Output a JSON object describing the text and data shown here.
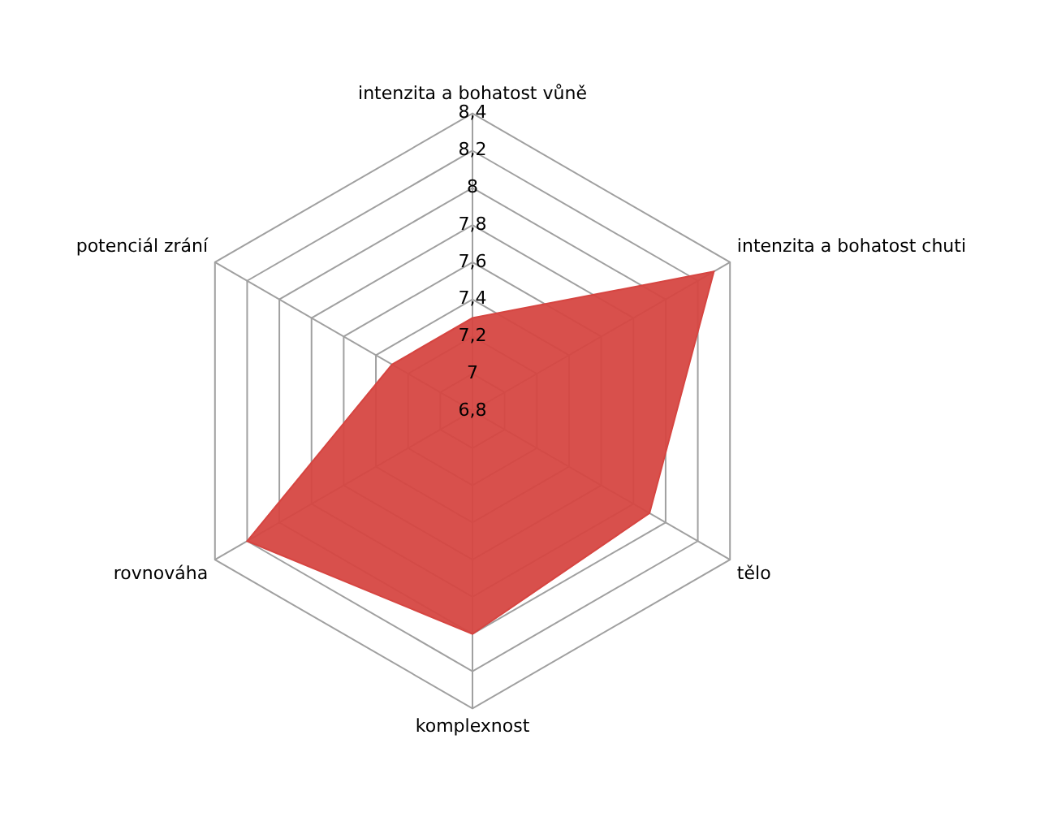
{
  "chart_data": {
    "type": "radar",
    "categories": [
      "intenzita a bohatost vůně",
      "intenzita a bohatost chuti",
      "tělo",
      "komplexnost",
      "rovnováha",
      "potenciál zrání"
    ],
    "series": [
      {
        "color": "#d64541",
        "values": [
          7.3,
          8.3,
          7.9,
          8.0,
          8.2,
          7.3
        ]
      }
    ],
    "ylim": [
      6.8,
      8.4
    ],
    "yticks": [
      {
        "value": 6.8,
        "label": "6,8"
      },
      {
        "value": 7,
        "label": "7"
      },
      {
        "value": 7.2,
        "label": "7,2"
      },
      {
        "value": 7.4,
        "label": "7,4"
      },
      {
        "value": 7.6,
        "label": "7,6"
      },
      {
        "value": 7.8,
        "label": "7,8"
      },
      {
        "value": 8,
        "label": "8"
      },
      {
        "value": 8.2,
        "label": "8,2"
      },
      {
        "value": 8.4,
        "label": "8,4"
      }
    ],
    "grid": true,
    "legend": false
  }
}
